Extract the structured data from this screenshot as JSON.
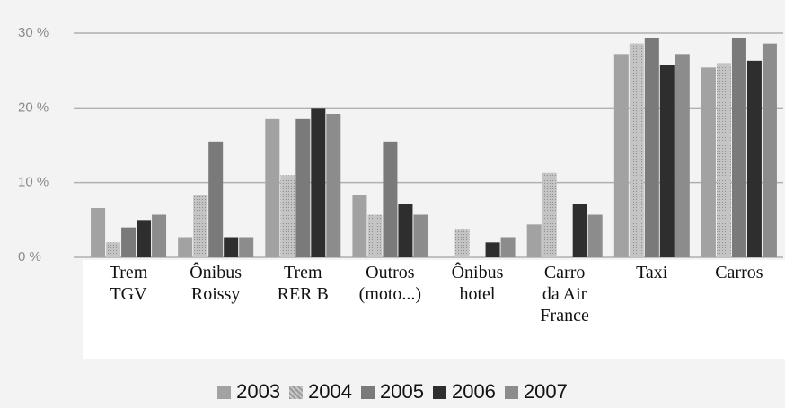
{
  "chart_data": {
    "type": "bar",
    "categories": [
      "Trem\nTGV",
      "Ônibus\nRoissy",
      "Trem\nRER B",
      "Outros\n(moto...)",
      "Ônibus\nhotel",
      "Carro\nda Air\nFrance",
      "Taxi",
      "Carros"
    ],
    "series": [
      {
        "name": "2003",
        "color": "#a2a2a2",
        "values": [
          6.6,
          2.7,
          18.5,
          8.3,
          null,
          4.4,
          27.2,
          25.4
        ]
      },
      {
        "name": "2004",
        "color": "#bcbcbc",
        "values": [
          2,
          8.3,
          11,
          5.7,
          3.8,
          11.3,
          28.6,
          26
        ]
      },
      {
        "name": "2005",
        "color": "#7a7a7a",
        "values": [
          4,
          15.5,
          18.5,
          15.5,
          null,
          null,
          29.4,
          29.4
        ]
      },
      {
        "name": "2006",
        "color": "#2e2e2e",
        "values": [
          5,
          2.7,
          20,
          7.2,
          2,
          7.2,
          25.7,
          26.3
        ]
      },
      {
        "name": "2007",
        "color": "#8c8c8c",
        "values": [
          5.7,
          2.7,
          19.2,
          5.7,
          2.7,
          5.7,
          27.2,
          28.6
        ]
      }
    ],
    "ylim": [
      0,
      30
    ],
    "yticks": [
      {
        "value": 0,
        "label": "0 %"
      },
      {
        "value": 10,
        "label": "10 %"
      },
      {
        "value": 20,
        "label": "20 %"
      },
      {
        "value": 30,
        "label": "30 %"
      }
    ],
    "grid": true,
    "legend": "bottom"
  }
}
